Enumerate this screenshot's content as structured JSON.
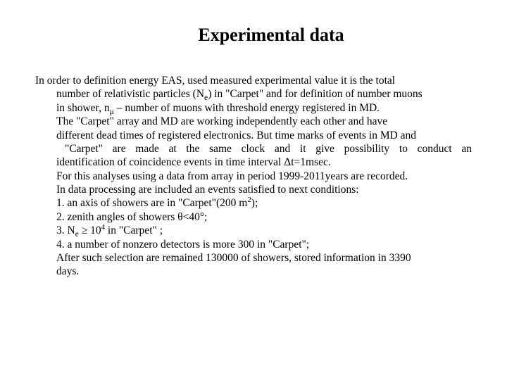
{
  "title": "Experimental data",
  "text": {
    "l1": "In order to definition energy EAS, used measured experimental value it is the total",
    "l2_pre": "number of relativistic particles (N",
    "l2_sub": "e",
    "l2_post": ") in \"Carpet\" and for definition of number muons",
    "l3_pre": "in shower, n",
    "l3_sub": "μ",
    "l3_post": " – number of muons with threshold energy registered in MD.",
    "l4": "The \"Carpet\" array and MD are working independently each other and have",
    "l5": "different dead times of registered  electronics. But time marks of events in   MD and",
    "l6": "\"Carpet\" are made at the same clock and it give possibility to conduct an",
    "l7": "identification of coincidence events in time interval Δt=1msec.",
    "l8": "For this analyses using a data from array in period 1999-2011years are recorded.",
    "l9": "In data processing are included an events satisfied to next conditions:",
    "l10_pre": "1. an axis of showers are in \"Carpet\"(200 m",
    "l10_sup": "2",
    "l10_post": ");",
    "l11": "2. zenith angles of showers θ<40°;",
    "l12_pre": "3. N",
    "l12_sub": "e",
    "l12_mid": " ≥ 10",
    "l12_sup": "4",
    "l12_post": "  in \"Carpet\"  ;",
    "l13": "4. a number of nonzero detectors is  more 300 in \"Carpet\";",
    "l14": " After such selection are remained 130000 of showers, stored information in 3390",
    "l15": "days."
  }
}
